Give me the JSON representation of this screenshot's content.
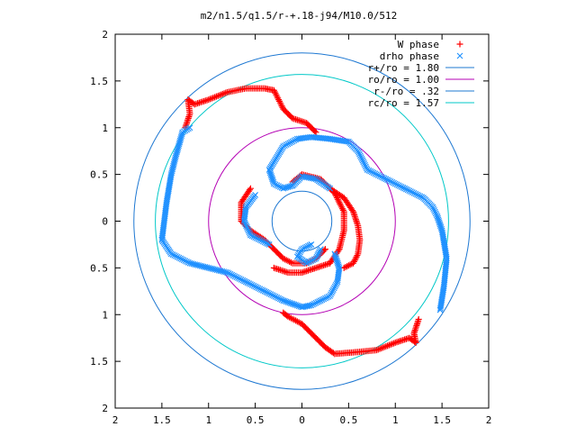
{
  "chart_data": {
    "type": "scatter",
    "title": "m2/n1.5/q1.5/r-+.18-j94/M10.0/512",
    "xlabel": "",
    "ylabel": "",
    "xlim": [
      -2,
      2
    ],
    "ylim": [
      -2,
      2
    ],
    "x_ticks": [
      -2,
      -1.5,
      -1,
      -0.5,
      0,
      0.5,
      1,
      1.5,
      2
    ],
    "y_ticks": [
      -2,
      -1.5,
      -1,
      -0.5,
      0,
      0.5,
      1,
      1.5,
      2
    ],
    "x_tick_labels": [
      "2",
      "1.5",
      "1",
      "0.5",
      "0",
      "0.5",
      "1",
      "1.5",
      "2"
    ],
    "y_tick_labels": [
      "2",
      "1.5",
      "1",
      "0.5",
      "0",
      "0.5",
      "1",
      "1.5",
      "2"
    ],
    "grid": false,
    "legend_position": "top-right",
    "series": [
      {
        "name": "W phase",
        "marker": "plus",
        "color": "#ff0000",
        "arms": [
          [
            [
              -1.25,
              1.0
            ],
            [
              -1.2,
              1.15
            ],
            [
              -1.22,
              1.3
            ],
            [
              -1.15,
              1.25
            ],
            [
              -1.0,
              1.3
            ],
            [
              -0.8,
              1.38
            ],
            [
              -0.6,
              1.42
            ],
            [
              -0.4,
              1.42
            ],
            [
              -0.3,
              1.4
            ],
            [
              -0.2,
              1.2
            ],
            [
              -0.1,
              1.1
            ],
            [
              0.05,
              1.05
            ],
            [
              0.15,
              0.95
            ]
          ],
          [
            [
              1.25,
              -1.05
            ],
            [
              1.2,
              -1.2
            ],
            [
              1.22,
              -1.3
            ],
            [
              1.15,
              -1.25
            ],
            [
              1.0,
              -1.3
            ],
            [
              0.8,
              -1.38
            ],
            [
              0.6,
              -1.4
            ],
            [
              0.35,
              -1.42
            ],
            [
              0.25,
              -1.35
            ],
            [
              0.1,
              -1.2
            ],
            [
              0.0,
              -1.1
            ],
            [
              -0.15,
              -1.02
            ],
            [
              -0.2,
              -0.98
            ]
          ],
          [
            [
              -0.1,
              0.42
            ],
            [
              0.0,
              0.5
            ],
            [
              0.2,
              0.45
            ],
            [
              0.35,
              0.3
            ],
            [
              0.45,
              0.1
            ],
            [
              0.45,
              -0.1
            ],
            [
              0.4,
              -0.3
            ],
            [
              0.3,
              -0.45
            ],
            [
              0.15,
              -0.5
            ],
            [
              0.0,
              -0.55
            ],
            [
              -0.15,
              -0.55
            ],
            [
              -0.3,
              -0.5
            ]
          ],
          [
            [
              -0.55,
              0.35
            ],
            [
              -0.65,
              0.2
            ],
            [
              -0.65,
              0.0
            ],
            [
              -0.55,
              -0.1
            ],
            [
              -0.4,
              -0.2
            ],
            [
              -0.3,
              -0.3
            ],
            [
              -0.2,
              -0.4
            ],
            [
              -0.1,
              -0.45
            ],
            [
              0.05,
              -0.45
            ],
            [
              0.15,
              -0.4
            ],
            [
              0.25,
              -0.3
            ]
          ],
          [
            [
              0.3,
              0.35
            ],
            [
              0.45,
              0.25
            ],
            [
              0.55,
              0.1
            ],
            [
              0.6,
              -0.05
            ],
            [
              0.62,
              -0.2
            ],
            [
              0.6,
              -0.35
            ],
            [
              0.55,
              -0.45
            ],
            [
              0.45,
              -0.5
            ]
          ]
        ]
      },
      {
        "name": "drho phase",
        "marker": "cross",
        "color": "#1e90ff",
        "arms": [
          [
            [
              -1.5,
              -0.2
            ],
            [
              -1.45,
              0.2
            ],
            [
              -1.4,
              0.5
            ],
            [
              -1.35,
              0.7
            ],
            [
              -1.28,
              0.95
            ],
            [
              -1.2,
              1.0
            ]
          ],
          [
            [
              -1.5,
              -0.2
            ],
            [
              -1.4,
              -0.35
            ],
            [
              -1.2,
              -0.45
            ],
            [
              -1.0,
              -0.5
            ],
            [
              -0.8,
              -0.55
            ],
            [
              -0.6,
              -0.65
            ],
            [
              -0.4,
              -0.75
            ],
            [
              -0.2,
              -0.85
            ],
            [
              0.0,
              -0.92
            ],
            [
              0.1,
              -0.9
            ],
            [
              0.2,
              -0.85
            ],
            [
              0.3,
              -0.8
            ],
            [
              0.38,
              -0.65
            ],
            [
              0.4,
              -0.5
            ],
            [
              0.35,
              -0.35
            ]
          ],
          [
            [
              1.48,
              -0.95
            ],
            [
              1.52,
              -0.7
            ],
            [
              1.55,
              -0.4
            ],
            [
              1.5,
              -0.1
            ],
            [
              1.45,
              0.05
            ],
            [
              1.4,
              0.15
            ],
            [
              1.3,
              0.25
            ],
            [
              1.1,
              0.35
            ],
            [
              0.9,
              0.45
            ],
            [
              0.7,
              0.55
            ],
            [
              0.6,
              0.75
            ],
            [
              0.5,
              0.85
            ],
            [
              0.3,
              0.88
            ],
            [
              0.1,
              0.9
            ],
            [
              -0.05,
              0.88
            ],
            [
              -0.2,
              0.8
            ],
            [
              -0.35,
              0.55
            ],
            [
              -0.3,
              0.4
            ],
            [
              -0.2,
              0.35
            ],
            [
              -0.1,
              0.38
            ]
          ],
          [
            [
              -0.1,
              0.38
            ],
            [
              0.0,
              0.48
            ],
            [
              0.15,
              0.45
            ],
            [
              0.3,
              0.35
            ]
          ],
          [
            [
              -0.5,
              0.28
            ],
            [
              -0.6,
              0.15
            ],
            [
              -0.62,
              0.0
            ],
            [
              -0.55,
              -0.15
            ],
            [
              -0.45,
              -0.2
            ],
            [
              -0.35,
              -0.25
            ]
          ],
          [
            [
              0.2,
              -0.3
            ],
            [
              0.15,
              -0.4
            ],
            [
              0.05,
              -0.45
            ],
            [
              -0.05,
              -0.38
            ],
            [
              0.0,
              -0.3
            ],
            [
              0.1,
              -0.25
            ]
          ]
        ]
      },
      {
        "name": "r+/ro = 1.80",
        "type": "circle",
        "radius": 1.8,
        "color": "#1e78d2"
      },
      {
        "name": "ro/ro = 1.00",
        "type": "circle",
        "radius": 1.0,
        "color": "#b400b4"
      },
      {
        "name": "r-/ro = .32",
        "type": "circle",
        "radius": 0.32,
        "color": "#1e78d2"
      },
      {
        "name": "rc/ro = 1.57",
        "type": "circle",
        "radius": 1.57,
        "color": "#00c8c8"
      }
    ]
  }
}
